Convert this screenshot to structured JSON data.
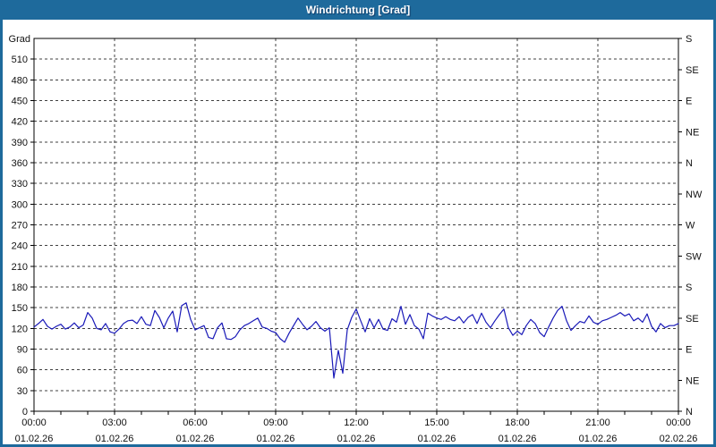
{
  "window": {
    "title": "Windrichtung [Grad]"
  },
  "styles": {
    "titlebar_color": "#1e6a9c",
    "border_color": "#1e6a9c",
    "line_color": "#1a1ab8",
    "grid_color": "#404040",
    "frame_color": "#000000",
    "plot_bg": "#ffffff",
    "text_color": "#111111"
  },
  "chart_data": {
    "type": "line",
    "title": "Windrichtung [Grad]",
    "y_left_axis_label": "Grad",
    "ylim": [
      0,
      540
    ],
    "y_left_tick_step": 30,
    "y_left_tick_labels": [
      0,
      30,
      60,
      90,
      120,
      150,
      180,
      210,
      240,
      270,
      300,
      330,
      360,
      390,
      420,
      450,
      480,
      510
    ],
    "y_right_labels": [
      {
        "value": 540,
        "label": "S"
      },
      {
        "value": 495,
        "label": "SE"
      },
      {
        "value": 450,
        "label": "E"
      },
      {
        "value": 405,
        "label": "NE"
      },
      {
        "value": 360,
        "label": "N"
      },
      {
        "value": 315,
        "label": "NW"
      },
      {
        "value": 270,
        "label": "W"
      },
      {
        "value": 225,
        "label": "SW"
      },
      {
        "value": 180,
        "label": "S"
      },
      {
        "value": 135,
        "label": "SE"
      },
      {
        "value": 90,
        "label": "E"
      },
      {
        "value": 45,
        "label": "NE"
      },
      {
        "value": 0,
        "label": "N"
      }
    ],
    "xlim_hours": [
      0,
      24
    ],
    "x_minor_tick_hours": 1,
    "x_major_ticks": [
      {
        "hour": 0,
        "time": "00:00",
        "date": "01.02.26"
      },
      {
        "hour": 3,
        "time": "03:00",
        "date": "01.02.26"
      },
      {
        "hour": 6,
        "time": "06:00",
        "date": "01.02.26"
      },
      {
        "hour": 9,
        "time": "09:00",
        "date": "01.02.26"
      },
      {
        "hour": 12,
        "time": "12:00",
        "date": "01.02.26"
      },
      {
        "hour": 15,
        "time": "15:00",
        "date": "01.02.26"
      },
      {
        "hour": 18,
        "time": "18:00",
        "date": "01.02.26"
      },
      {
        "hour": 21,
        "time": "21:00",
        "date": "01.02.26"
      },
      {
        "hour": 24,
        "time": "00:00",
        "date": "02.02.26"
      }
    ],
    "grid": {
      "h_step": 30,
      "v_step_hours": 3,
      "style": "dashed"
    },
    "legend": "none",
    "series": [
      {
        "name": "Windrichtung",
        "unit": "Grad",
        "sample_interval_minutes": 10,
        "start": "01.02.26 00:00",
        "values": [
          122,
          127,
          133,
          123,
          119,
          123,
          126,
          119,
          122,
          128,
          121,
          125,
          143,
          135,
          120,
          118,
          127,
          115,
          113,
          119,
          127,
          131,
          132,
          127,
          137,
          126,
          124,
          146,
          136,
          121,
          135,
          145,
          115,
          153,
          157,
          133,
          118,
          121,
          124,
          107,
          105,
          121,
          128,
          105,
          104,
          108,
          118,
          124,
          127,
          131,
          135,
          122,
          120,
          116,
          114,
          105,
          100,
          113,
          124,
          135,
          126,
          118,
          123,
          130,
          121,
          116,
          121,
          48,
          88,
          55,
          118,
          136,
          148,
          131,
          115,
          134,
          121,
          133,
          119,
          117,
          134,
          129,
          152,
          126,
          140,
          124,
          119,
          105,
          142,
          138,
          135,
          133,
          137,
          133,
          131,
          137,
          128,
          136,
          140,
          127,
          142,
          129,
          121,
          131,
          140,
          148,
          121,
          110,
          116,
          111,
          124,
          133,
          127,
          114,
          108,
          122,
          135,
          146,
          152,
          131,
          117,
          124,
          130,
          128,
          138,
          129,
          126,
          131,
          133,
          136,
          139,
          143,
          138,
          141,
          131,
          135,
          129,
          141,
          123,
          115,
          127,
          121,
          124,
          124,
          127
        ]
      }
    ]
  }
}
